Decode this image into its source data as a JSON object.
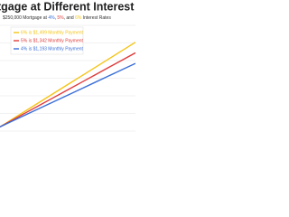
{
  "chart_data": {
    "type": "line",
    "title": "tgage at Different Interest",
    "subtitle": [
      {
        "text": "$250,000 Mortgage at ",
        "color": "#333333"
      },
      {
        "text": "4%",
        "color": "#3b6fd8"
      },
      {
        "text": ", ",
        "color": "#333333"
      },
      {
        "text": "5%",
        "color": "#e03c3c"
      },
      {
        "text": ", and ",
        "color": "#333333"
      },
      {
        "text": "6%",
        "color": "#f5c518"
      },
      {
        "text": " Interest Rates",
        "color": "#333333"
      }
    ],
    "x": [
      0,
      1,
      2,
      3,
      4,
      5,
      6,
      7,
      8,
      9,
      10
    ],
    "xlim": [
      0,
      10
    ],
    "ylim": [
      0,
      100
    ],
    "grid": true,
    "series": [
      {
        "name": "6% is $1,499 Monthly Payment",
        "color": "#f5c518",
        "values": [
          4,
          12,
          20,
          28,
          36,
          44,
          52,
          60,
          68,
          76,
          84
        ]
      },
      {
        "name": "5% is $1,342 Monthly Payment",
        "color": "#e03c3c",
        "values": [
          4,
          11,
          18,
          25,
          32,
          39,
          46,
          53,
          60,
          67,
          74
        ]
      },
      {
        "name": "4% is $1,193 Monthly Payment",
        "color": "#3b6fd8",
        "values": [
          4,
          10,
          16,
          22,
          28,
          34,
          40,
          46,
          52,
          58,
          64
        ]
      }
    ]
  }
}
